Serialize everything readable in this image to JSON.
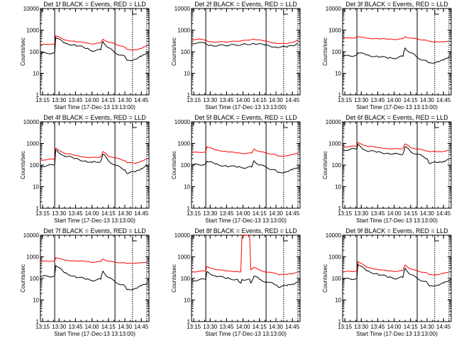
{
  "figure": {
    "series_colors": {
      "Events": "#000000",
      "LLD": "#ff0000"
    },
    "axis_xlabel": "Start Time (17-Dec-13 13:13:00)",
    "axis_ylabel": "Counts/sec",
    "x_tick_labels": [
      "13:15",
      "13:30",
      "13:45",
      "14:00",
      "14:15",
      "14:30",
      "14:45"
    ],
    "y_tick_labels": [
      "1",
      "10",
      "100",
      "1000",
      "10000"
    ],
    "marker_label": "E"
  },
  "chart_data": [
    {
      "type": "line",
      "title": "Det 1f BLACK = Events, RED = LLD",
      "xlabel": "Start Time (17-Dec-13 13:13:00)",
      "ylabel": "Counts/sec",
      "yscale": "log",
      "ylim": [
        1,
        10000
      ],
      "xlim": [
        "13:13",
        "14:52"
      ],
      "x": [
        "13:13",
        "13:26",
        "13:27",
        "13:35",
        "13:45",
        "13:55",
        "14:00",
        "14:08",
        "14:10",
        "14:15",
        "14:21",
        "14:30",
        "14:32",
        "14:40",
        "14:45",
        "14:50"
      ],
      "series": [
        {
          "name": "Events",
          "values": [
            80,
            90,
            450,
            250,
            200,
            140,
            110,
            120,
            300,
            150,
            90,
            60,
            40,
            45,
            60,
            90
          ]
        },
        {
          "name": "LLD",
          "values": [
            210,
            230,
            550,
            350,
            300,
            250,
            230,
            250,
            380,
            280,
            230,
            160,
            130,
            120,
            140,
            200
          ]
        }
      ],
      "markers": {
        "solid": [
          "13:26",
          "14:21"
        ],
        "dotted": [
          "14:37",
          "14:50"
        ]
      }
    },
    {
      "type": "line",
      "title": "Det 2f BLACK = Events, RED = LLD",
      "xlabel": "Start Time (17-Dec-13 13:13:00)",
      "ylabel": "Counts/sec",
      "yscale": "log",
      "ylim": [
        1,
        10000
      ],
      "xlim": [
        "13:13",
        "14:52"
      ],
      "x": [
        "13:13",
        "13:20",
        "13:30",
        "13:45",
        "14:00",
        "14:10",
        "14:20",
        "14:30",
        "14:40",
        "14:45",
        "14:50"
      ],
      "series": [
        {
          "name": "Events",
          "values": [
            250,
            270,
            200,
            190,
            220,
            240,
            200,
            170,
            160,
            190,
            260
          ]
        },
        {
          "name": "LLD",
          "values": [
            360,
            390,
            290,
            280,
            330,
            380,
            310,
            250,
            230,
            270,
            350
          ]
        }
      ],
      "markers": {
        "solid": [
          "13:26",
          "14:21"
        ],
        "dotted": [
          "14:37",
          "14:50"
        ]
      }
    },
    {
      "type": "line",
      "title": "Det 3f BLACK = Events, RED = LLD",
      "xlabel": "Start Time (17-Dec-13 13:13:00)",
      "ylabel": "Counts/sec",
      "yscale": "log",
      "ylim": [
        1,
        10000
      ],
      "xlim": [
        "13:13",
        "14:52"
      ],
      "x": [
        "13:13",
        "13:26",
        "13:27",
        "13:35",
        "13:45",
        "13:55",
        "14:00",
        "14:08",
        "14:10",
        "14:15",
        "14:21",
        "14:30",
        "14:32",
        "14:40",
        "14:45",
        "14:50"
      ],
      "series": [
        {
          "name": "Events",
          "values": [
            60,
            70,
            90,
            70,
            60,
            50,
            50,
            60,
            150,
            90,
            55,
            35,
            30,
            35,
            40,
            60
          ]
        },
        {
          "name": "LLD",
          "values": [
            420,
            450,
            500,
            420,
            400,
            380,
            370,
            390,
            500,
            420,
            390,
            330,
            300,
            290,
            280,
            320
          ]
        }
      ],
      "markers": {
        "solid": [
          "13:26",
          "14:21"
        ],
        "dotted": [
          "14:37",
          "14:50"
        ]
      }
    },
    {
      "type": "line",
      "title": "Det 4f BLACK = Events, RED = LLD",
      "xlabel": "Start Time (17-Dec-13 13:13:00)",
      "ylabel": "Counts/sec",
      "yscale": "log",
      "ylim": [
        1,
        10000
      ],
      "xlim": [
        "13:13",
        "14:52"
      ],
      "x": [
        "13:13",
        "13:26",
        "13:27",
        "13:35",
        "13:45",
        "13:55",
        "14:00",
        "14:08",
        "14:10",
        "14:15",
        "14:21",
        "14:30",
        "14:32",
        "14:40",
        "14:45",
        "14:50"
      ],
      "series": [
        {
          "name": "Events",
          "values": [
            90,
            100,
            500,
            260,
            200,
            150,
            130,
            150,
            320,
            160,
            100,
            60,
            40,
            50,
            70,
            90
          ]
        },
        {
          "name": "LLD",
          "values": [
            170,
            190,
            600,
            350,
            280,
            230,
            220,
            240,
            420,
            260,
            220,
            160,
            130,
            120,
            150,
            190
          ]
        }
      ],
      "markers": {
        "solid": [
          "13:26",
          "14:21"
        ],
        "dotted": [
          "14:37",
          "14:50"
        ]
      }
    },
    {
      "type": "line",
      "title": "Det 5f BLACK = Events, RED = LLD",
      "xlabel": "Start Time (17-Dec-13 13:13:00)",
      "ylabel": "Counts/sec",
      "yscale": "log",
      "ylim": [
        1,
        10000
      ],
      "xlim": [
        "13:13",
        "14:52"
      ],
      "x": [
        "13:13",
        "13:26",
        "13:27",
        "13:35",
        "13:45",
        "13:55",
        "14:00",
        "14:08",
        "14:10",
        "14:15",
        "14:21",
        "14:30",
        "14:32",
        "14:40",
        "14:45",
        "14:50"
      ],
      "series": [
        {
          "name": "Events",
          "values": [
            100,
            110,
            150,
            110,
            90,
            80,
            75,
            80,
            160,
            100,
            80,
            55,
            45,
            50,
            60,
            80
          ]
        },
        {
          "name": "LLD",
          "values": [
            380,
            400,
            700,
            500,
            420,
            360,
            340,
            360,
            550,
            420,
            360,
            300,
            260,
            270,
            300,
            360
          ]
        }
      ],
      "markers": {
        "solid": [
          "13:26",
          "14:21"
        ],
        "dotted": [
          "14:37",
          "14:50"
        ]
      }
    },
    {
      "type": "line",
      "title": "Det 6f BLACK = Events, RED = LLD",
      "xlabel": "Start Time (17-Dec-13 13:13:00)",
      "ylabel": "Counts/sec",
      "yscale": "log",
      "ylim": [
        1,
        10000
      ],
      "xlim": [
        "13:13",
        "14:52"
      ],
      "x": [
        "13:13",
        "13:26",
        "13:27",
        "13:35",
        "13:45",
        "13:55",
        "14:00",
        "14:08",
        "14:10",
        "14:15",
        "14:21",
        "14:30",
        "14:32",
        "14:40",
        "14:45",
        "14:50"
      ],
      "series": [
        {
          "name": "Events",
          "values": [
            500,
            550,
            900,
            450,
            400,
            350,
            320,
            330,
            700,
            420,
            320,
            200,
            120,
            130,
            150,
            180
          ]
        },
        {
          "name": "LLD",
          "values": [
            700,
            750,
            1100,
            750,
            650,
            570,
            560,
            580,
            950,
            650,
            560,
            450,
            420,
            410,
            430,
            480
          ]
        }
      ],
      "markers": {
        "solid": [
          "13:26",
          "14:21"
        ],
        "dotted": [
          "14:37",
          "14:50"
        ]
      }
    },
    {
      "type": "line",
      "title": "Det 7f BLACK = Events, RED = LLD",
      "xlabel": "Start Time (17-Dec-13 13:13:00)",
      "ylabel": "Counts/sec",
      "yscale": "log",
      "ylim": [
        1,
        10000
      ],
      "xlim": [
        "13:13",
        "14:52"
      ],
      "x": [
        "13:13",
        "13:26",
        "13:27",
        "13:35",
        "13:45",
        "13:55",
        "14:00",
        "14:08",
        "14:10",
        "14:15",
        "14:21",
        "14:30",
        "14:32",
        "14:40",
        "14:45",
        "14:50"
      ],
      "series": [
        {
          "name": "Events",
          "values": [
            120,
            130,
            400,
            180,
            120,
            90,
            80,
            90,
            220,
            110,
            70,
            45,
            30,
            35,
            45,
            60
          ]
        },
        {
          "name": "LLD",
          "values": [
            600,
            650,
            900,
            700,
            650,
            600,
            560,
            600,
            800,
            620,
            560,
            520,
            500,
            510,
            520,
            560
          ]
        }
      ],
      "markers": {
        "solid": [
          "13:26",
          "14:21"
        ],
        "dotted": [
          "14:37",
          "14:50"
        ]
      }
    },
    {
      "type": "line",
      "title": "Det 8f BLACK = Events, RED = LLD",
      "xlabel": "Start Time (17-Dec-13 13:13:00)",
      "ylabel": "Counts/sec",
      "yscale": "log",
      "ylim": [
        1,
        10000
      ],
      "xlim": [
        "13:13",
        "14:52"
      ],
      "x": [
        "13:13",
        "13:26",
        "13:27",
        "13:35",
        "13:45",
        "13:55",
        "13:58",
        "13:59",
        "14:06",
        "14:07",
        "14:10",
        "14:15",
        "14:21",
        "14:30",
        "14:32",
        "14:40",
        "14:45",
        "14:50"
      ],
      "series": [
        {
          "name": "Events",
          "values": [
            80,
            90,
            200,
            130,
            100,
            90,
            60,
            90,
            90,
            60,
            130,
            90,
            70,
            50,
            40,
            45,
            55,
            70
          ]
        },
        {
          "name": "LLD",
          "values": [
            200,
            220,
            350,
            260,
            220,
            210,
            200,
            10000,
            10000,
            250,
            330,
            240,
            200,
            170,
            150,
            150,
            170,
            200
          ]
        }
      ],
      "markers": {
        "solid": [
          "13:26",
          "14:21"
        ],
        "dotted": [
          "14:37",
          "14:50"
        ]
      }
    },
    {
      "type": "line",
      "title": "Det 9f BLACK = Events, RED = LLD",
      "xlabel": "Start Time (17-Dec-13 13:13:00)",
      "ylabel": "Counts/sec",
      "yscale": "log",
      "ylim": [
        1,
        10000
      ],
      "xlim": [
        "13:13",
        "14:52"
      ],
      "x": [
        "13:13",
        "13:26",
        "13:27",
        "13:35",
        "13:45",
        "13:55",
        "14:00",
        "14:08",
        "14:10",
        "14:15",
        "14:21",
        "14:30",
        "14:32",
        "14:40",
        "14:45",
        "14:50"
      ],
      "series": [
        {
          "name": "Events",
          "values": [
            90,
            100,
            450,
            220,
            160,
            110,
            100,
            110,
            300,
            150,
            100,
            65,
            45,
            50,
            60,
            80
          ]
        },
        {
          "name": "LLD",
          "values": [
            200,
            220,
            600,
            330,
            260,
            220,
            210,
            230,
            420,
            270,
            220,
            180,
            150,
            150,
            170,
            200
          ]
        }
      ],
      "markers": {
        "solid": [
          "13:26",
          "14:21"
        ],
        "dotted": [
          "14:37",
          "14:50"
        ]
      }
    }
  ]
}
